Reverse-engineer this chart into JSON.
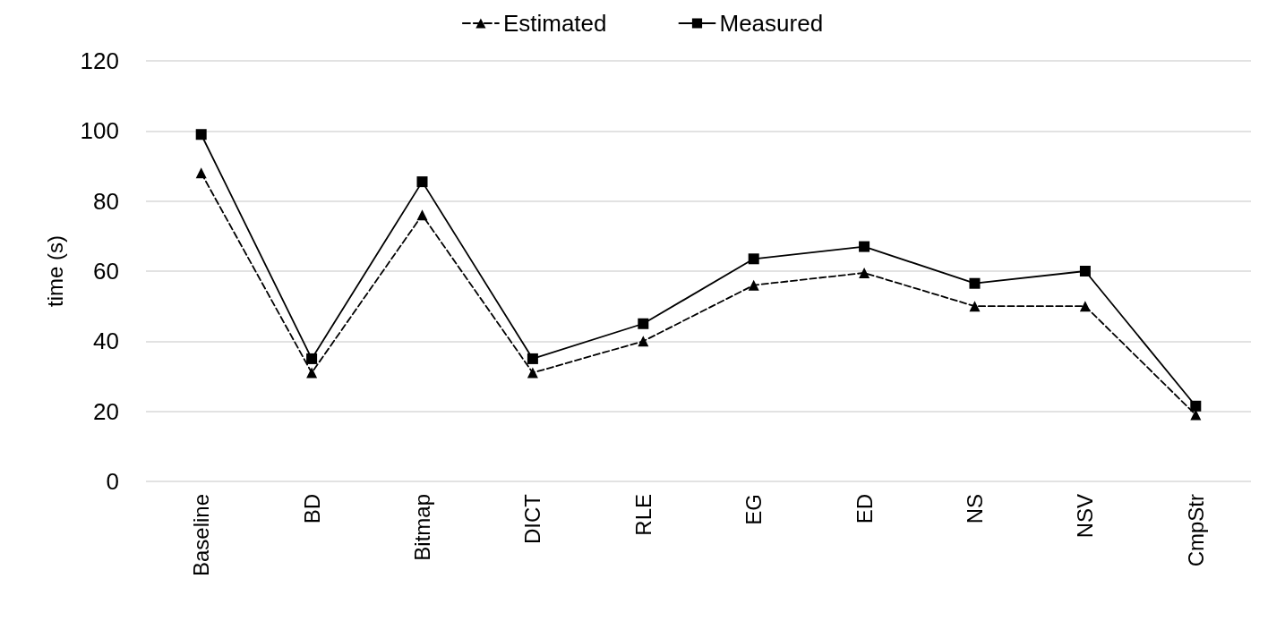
{
  "chart_data": {
    "type": "line",
    "ylabel": "time (s)",
    "categories": [
      "Baseline",
      "BD",
      "Bitmap",
      "DICT",
      "RLE",
      "EG",
      "ED",
      "NS",
      "NSV",
      "CmpStr"
    ],
    "series": [
      {
        "name": "Estimated",
        "color": "#000000",
        "marker": "triangle",
        "line_style": "dashed",
        "values": [
          88,
          31,
          76,
          31,
          40,
          56,
          59.5,
          50,
          50,
          19
        ]
      },
      {
        "name": "Measured",
        "color": "#000000",
        "marker": "square",
        "line_style": "solid",
        "values": [
          99,
          35,
          85.5,
          35,
          45,
          63.5,
          67,
          56.5,
          60,
          21.5
        ]
      }
    ],
    "ylim": [
      0,
      120
    ],
    "yticks": [
      0,
      20,
      40,
      60,
      80,
      100,
      120
    ],
    "grid": "y",
    "legend": "top"
  }
}
